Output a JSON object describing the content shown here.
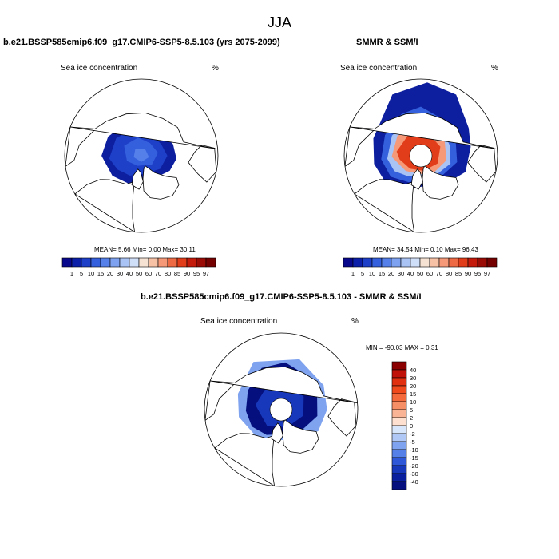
{
  "title": "JJA",
  "chart_data": [
    {
      "type": "heatmap",
      "projection": "north-polar-stereographic",
      "title": "b.e21.BSSP585cmip6.f09_g17.CMIP6-SSP5-8.5.103 (yrs 2075-2099)",
      "left_label": "Sea ice concentration",
      "units": "%",
      "stats_text": "MEAN=  5.66  Min=   0.00  Max=  30.11",
      "stats": {
        "mean": 5.66,
        "min": 0.0,
        "max": 30.11
      },
      "colorbar_levels": [
        "1",
        "5",
        "10",
        "15",
        "20",
        "30",
        "40",
        "50",
        "60",
        "70",
        "80",
        "85",
        "90",
        "95",
        "97"
      ],
      "colorbar_colors": [
        "#08088c",
        "#0b1fa8",
        "#1e3fc8",
        "#3560dd",
        "#5580ea",
        "#7fa2f0",
        "#a9c3f5",
        "#d0dff8",
        "#f6e2d2",
        "#f7c1a6",
        "#f59978",
        "#ee6a45",
        "#e23d1b",
        "#c31a0c",
        "#9a0b05",
        "#750000"
      ]
    },
    {
      "type": "heatmap",
      "projection": "north-polar-stereographic",
      "title": "SMMR & SSM/I",
      "left_label": "Sea ice concentration",
      "units": "%",
      "stats_text": "MEAN=  34.54  Min=   0.10  Max=  96.43",
      "stats": {
        "mean": 34.54,
        "min": 0.1,
        "max": 96.43
      },
      "colorbar_levels": [
        "1",
        "5",
        "10",
        "15",
        "20",
        "30",
        "40",
        "50",
        "60",
        "70",
        "80",
        "85",
        "90",
        "95",
        "97"
      ],
      "colorbar_colors": [
        "#08088c",
        "#0b1fa8",
        "#1e3fc8",
        "#3560dd",
        "#5580ea",
        "#7fa2f0",
        "#a9c3f5",
        "#d0dff8",
        "#f6e2d2",
        "#f7c1a6",
        "#f59978",
        "#ee6a45",
        "#e23d1b",
        "#c31a0c",
        "#9a0b05",
        "#750000"
      ]
    },
    {
      "type": "heatmap",
      "projection": "north-polar-stereographic",
      "title": "b.e21.BSSP585cmip6.f09_g17.CMIP6-SSP5-8.5.103 - SMMR & SSM/I",
      "left_label": "Sea ice concentration",
      "units": "%",
      "stats_text": "MIN = -90.03 MAX =   0.31",
      "stats": {
        "min": -90.03,
        "max": 0.31
      },
      "colorbar_levels": [
        "40",
        "30",
        "20",
        "15",
        "10",
        "5",
        "2",
        "0",
        "-2",
        "-5",
        "-10",
        "-15",
        "-20",
        "-30",
        "-40"
      ],
      "colorbar_colors": [
        "#8b0000",
        "#c01208",
        "#e03010",
        "#f04a1c",
        "#f56a3c",
        "#f78f66",
        "#f9b495",
        "#fde0d0",
        "#d8e6fb",
        "#b0c8f5",
        "#7fa3ef",
        "#5580e8",
        "#2f58d8",
        "#1838bc",
        "#0a1f9e",
        "#05107e"
      ]
    }
  ]
}
